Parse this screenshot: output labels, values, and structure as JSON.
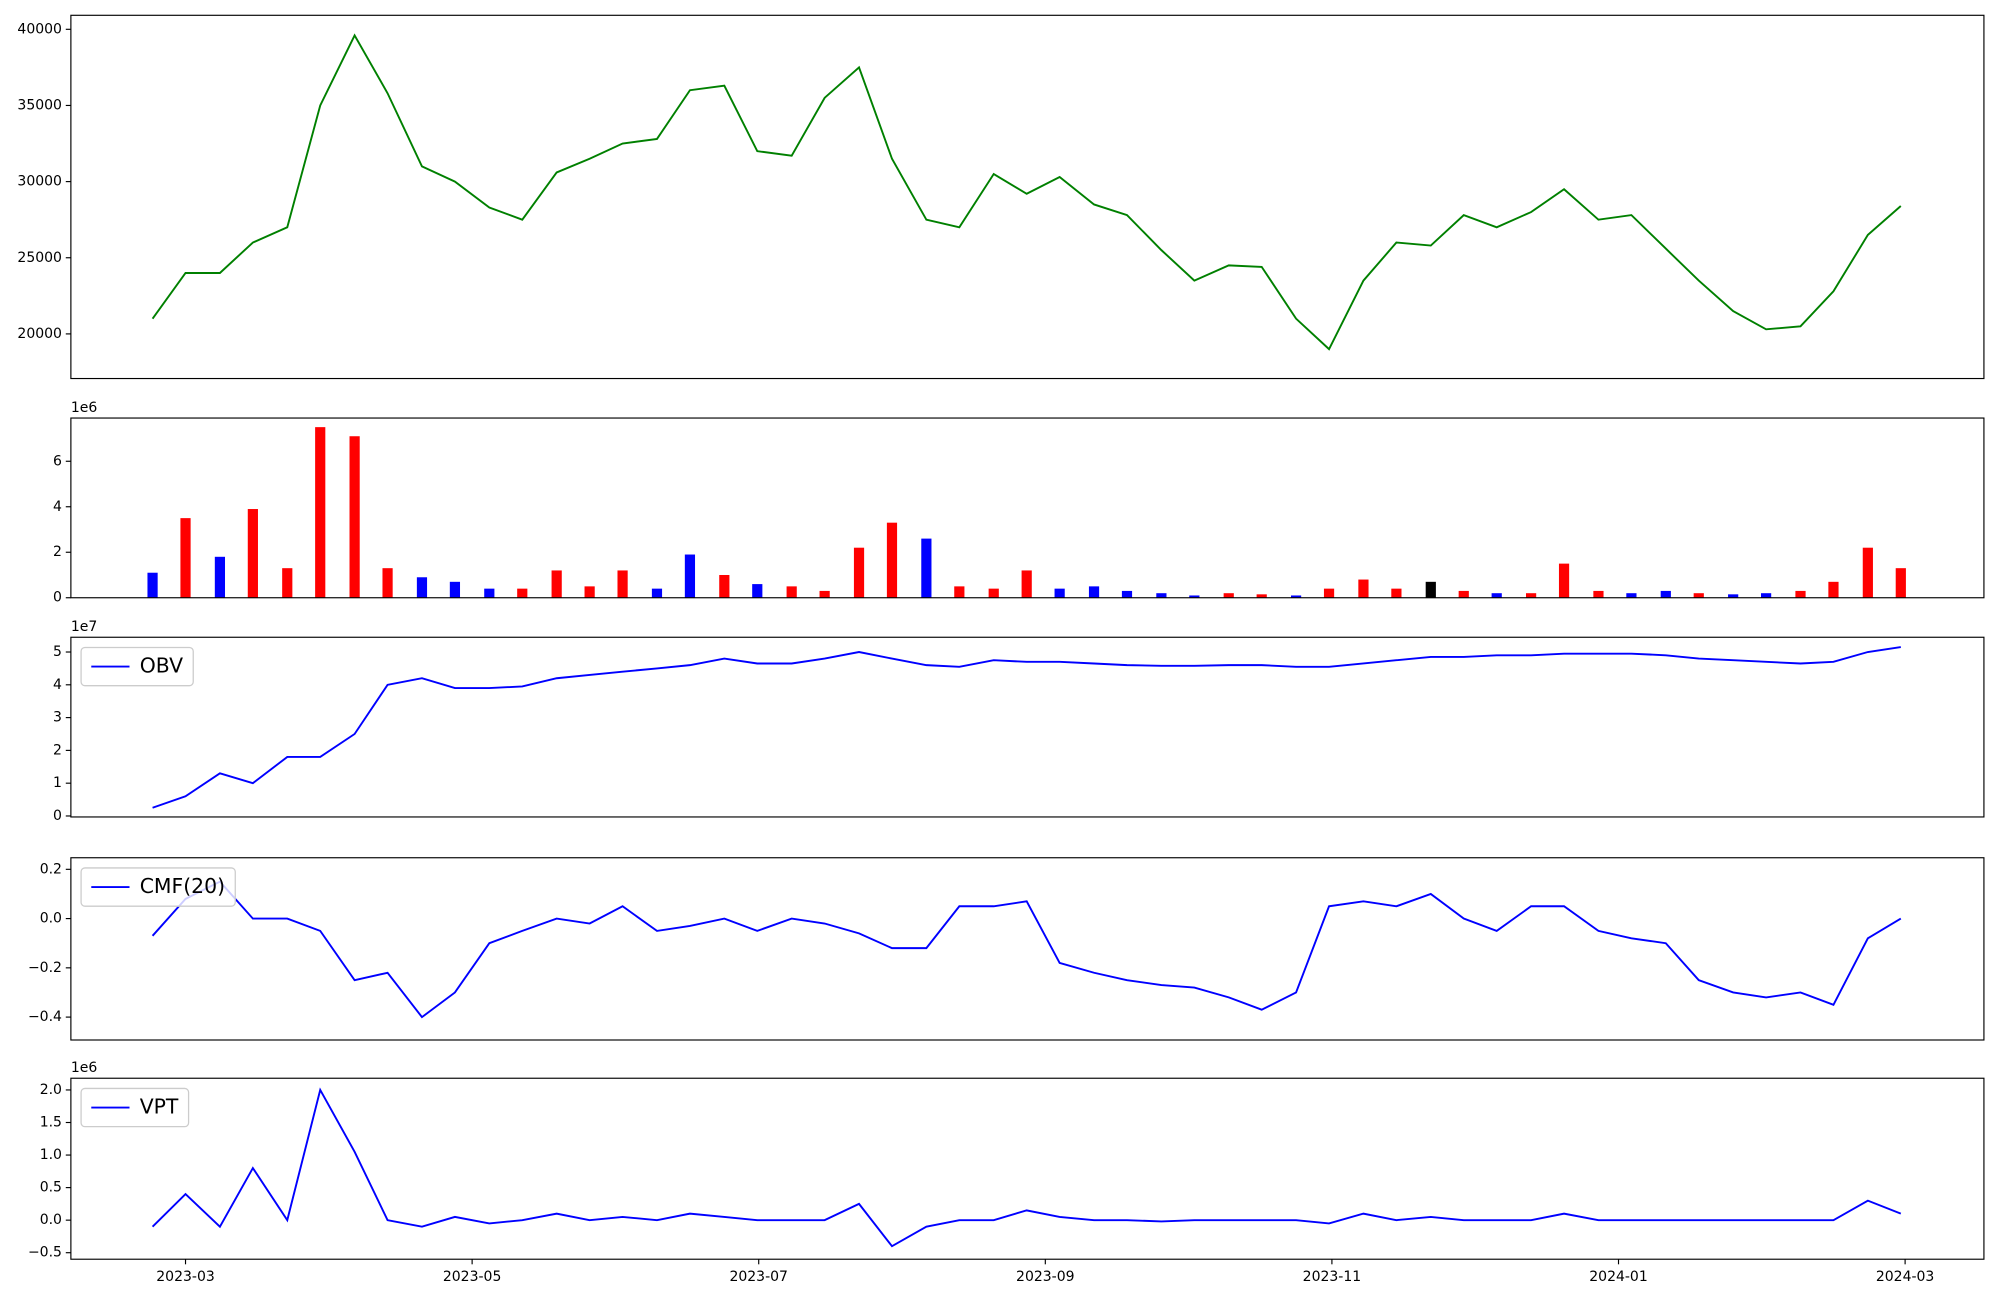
{
  "chart_data": [
    {
      "type": "line",
      "x": [
        1.77,
        2.0,
        2.24,
        2.47,
        2.71,
        2.94,
        3.18,
        3.41,
        3.65,
        3.88,
        4.12,
        4.35,
        4.59,
        4.82,
        5.05,
        5.29,
        5.52,
        5.76,
        5.99,
        6.23,
        6.46,
        6.7,
        6.93,
        7.17,
        7.4,
        7.64,
        7.87,
        8.1,
        8.34,
        8.57,
        8.81,
        9.04,
        9.28,
        9.51,
        9.75,
        9.98,
        10.22,
        10.45,
        10.69,
        10.92,
        11.15,
        11.39,
        11.62,
        11.86,
        12.09,
        12.33,
        12.56,
        12.8,
        13.03,
        13.27,
        13.5,
        13.74,
        13.97
      ],
      "xlim": [
        1.2,
        14.55
      ],
      "series": [
        {
          "color": "green",
          "values": [
            21000,
            24000,
            24000,
            26000,
            27000,
            35000,
            39600,
            35800,
            31000,
            30000,
            28300,
            27500,
            30600,
            31500,
            32500,
            32800,
            36000,
            36300,
            32000,
            31700,
            35500,
            37500,
            31500,
            27500,
            27000,
            30500,
            29200,
            30300,
            28500,
            27800,
            25500,
            23500,
            24500,
            24400,
            21000,
            19000,
            23500,
            26000,
            25800,
            27800,
            27000,
            28000,
            29500,
            27500,
            27800,
            25600,
            23500,
            21500,
            20300,
            20500,
            22800,
            26500,
            28400
          ]
        }
      ],
      "ylim": [
        17070,
        40920
      ],
      "yticks": [
        20000,
        25000,
        30000,
        35000,
        40000
      ]
    },
    {
      "type": "bar",
      "x": [
        1.77,
        2.0,
        2.24,
        2.47,
        2.71,
        2.94,
        3.18,
        3.41,
        3.65,
        3.88,
        4.12,
        4.35,
        4.59,
        4.82,
        5.05,
        5.29,
        5.52,
        5.76,
        5.99,
        6.23,
        6.46,
        6.7,
        6.93,
        7.17,
        7.4,
        7.64,
        7.87,
        8.1,
        8.34,
        8.57,
        8.81,
        9.04,
        9.28,
        9.51,
        9.75,
        9.98,
        10.22,
        10.45,
        10.69,
        10.92,
        11.15,
        11.39,
        11.62,
        11.86,
        12.09,
        12.33,
        12.56,
        12.8,
        13.03,
        13.27,
        13.5,
        13.74,
        13.97
      ],
      "xlim": [
        1.2,
        14.55
      ],
      "values": [
        1.1,
        3.5,
        1.8,
        3.9,
        1.3,
        7.5,
        7.1,
        1.3,
        0.9,
        0.7,
        0.4,
        0.4,
        1.2,
        0.5,
        1.2,
        0.4,
        1.9,
        1.0,
        0.6,
        0.5,
        0.3,
        2.2,
        3.3,
        2.6,
        0.5,
        0.4,
        1.2,
        0.4,
        0.5,
        0.3,
        0.2,
        0.1,
        0.2,
        0.15,
        0.1,
        0.4,
        0.8,
        0.4,
        0.7,
        0.3,
        0.2,
        0.2,
        1.5,
        0.3,
        0.2,
        0.3,
        0.2,
        0.15,
        0.2,
        0.3,
        0.7,
        2.2,
        1.3
      ],
      "colors": [
        "blue",
        "red",
        "blue",
        "red",
        "red",
        "red",
        "red",
        "red",
        "blue",
        "blue",
        "blue",
        "red",
        "red",
        "red",
        "red",
        "blue",
        "blue",
        "red",
        "blue",
        "red",
        "red",
        "red",
        "red",
        "blue",
        "red",
        "red",
        "red",
        "blue",
        "blue",
        "blue",
        "blue",
        "blue",
        "red",
        "red",
        "blue",
        "red",
        "red",
        "red",
        "black",
        "red",
        "blue",
        "red",
        "red",
        "red",
        "blue",
        "blue",
        "red",
        "blue",
        "blue",
        "red",
        "red",
        "red",
        "red"
      ],
      "ylim": [
        0,
        7.9
      ],
      "yticks": [
        0,
        2,
        4,
        6
      ],
      "offset_label": "1e6"
    },
    {
      "type": "line",
      "x": [
        1.77,
        2.0,
        2.24,
        2.47,
        2.71,
        2.94,
        3.18,
        3.41,
        3.65,
        3.88,
        4.12,
        4.35,
        4.59,
        4.82,
        5.05,
        5.29,
        5.52,
        5.76,
        5.99,
        6.23,
        6.46,
        6.7,
        6.93,
        7.17,
        7.4,
        7.64,
        7.87,
        8.1,
        8.34,
        8.57,
        8.81,
        9.04,
        9.28,
        9.51,
        9.75,
        9.98,
        10.22,
        10.45,
        10.69,
        10.92,
        11.15,
        11.39,
        11.62,
        11.86,
        12.09,
        12.33,
        12.56,
        12.8,
        13.03,
        13.27,
        13.5,
        13.74,
        13.97
      ],
      "xlim": [
        1.2,
        14.55
      ],
      "series": [
        {
          "name": "OBV",
          "color": "blue",
          "values": [
            0.25,
            0.6,
            1.3,
            1.0,
            1.8,
            1.8,
            2.5,
            4.0,
            4.2,
            3.9,
            3.9,
            3.95,
            4.2,
            4.3,
            4.4,
            4.5,
            4.6,
            4.8,
            4.65,
            4.65,
            4.8,
            5.0,
            4.8,
            4.6,
            4.55,
            4.75,
            4.7,
            4.7,
            4.65,
            4.6,
            4.58,
            4.58,
            4.6,
            4.6,
            4.55,
            4.55,
            4.65,
            4.75,
            4.85,
            4.85,
            4.9,
            4.9,
            4.95,
            4.95,
            4.95,
            4.9,
            4.8,
            4.75,
            4.7,
            4.65,
            4.7,
            5.0,
            5.15
          ]
        }
      ],
      "ylim": [
        -0.03,
        5.45
      ],
      "yticks": [
        0,
        1,
        2,
        3,
        4,
        5
      ],
      "offset_label": "1e7",
      "legend": "upper left"
    },
    {
      "type": "line",
      "x": [
        1.77,
        2.0,
        2.24,
        2.47,
        2.71,
        2.94,
        3.18,
        3.41,
        3.65,
        3.88,
        4.12,
        4.35,
        4.59,
        4.82,
        5.05,
        5.29,
        5.52,
        5.76,
        5.99,
        6.23,
        6.46,
        6.7,
        6.93,
        7.17,
        7.4,
        7.64,
        7.87,
        8.1,
        8.34,
        8.57,
        8.81,
        9.04,
        9.28,
        9.51,
        9.75,
        9.98,
        10.22,
        10.45,
        10.69,
        10.92,
        11.15,
        11.39,
        11.62,
        11.86,
        12.09,
        12.33,
        12.56,
        12.8,
        13.03,
        13.27,
        13.5,
        13.74,
        13.97
      ],
      "xlim": [
        1.2,
        14.55
      ],
      "series": [
        {
          "name": "CMF(20)",
          "color": "blue",
          "values": [
            -0.07,
            0.08,
            0.15,
            0.0,
            0.0,
            -0.05,
            -0.25,
            -0.22,
            -0.4,
            -0.3,
            -0.1,
            -0.05,
            0.0,
            -0.02,
            0.05,
            -0.05,
            -0.03,
            0.0,
            -0.05,
            0.0,
            -0.02,
            -0.06,
            -0.12,
            -0.12,
            0.05,
            0.05,
            0.07,
            -0.18,
            -0.22,
            -0.25,
            -0.27,
            -0.28,
            -0.32,
            -0.37,
            -0.3,
            0.05,
            0.07,
            0.05,
            0.1,
            0.0,
            -0.05,
            0.05,
            0.05,
            -0.05,
            -0.08,
            -0.1,
            -0.25,
            -0.3,
            -0.32,
            -0.3,
            -0.35,
            -0.08,
            0.0
          ]
        }
      ],
      "ylim": [
        -0.493,
        0.247
      ],
      "yticks": [
        {
          "value": -0.4,
          "label": "−0.4"
        },
        {
          "value": -0.2,
          "label": "−0.2"
        },
        {
          "value": 0,
          "label": "0.0"
        },
        0.2
      ],
      "legend": "upper left"
    },
    {
      "type": "line",
      "x": [
        1.77,
        2.0,
        2.24,
        2.47,
        2.71,
        2.94,
        3.18,
        3.41,
        3.65,
        3.88,
        4.12,
        4.35,
        4.59,
        4.82,
        5.05,
        5.29,
        5.52,
        5.76,
        5.99,
        6.23,
        6.46,
        6.7,
        6.93,
        7.17,
        7.4,
        7.64,
        7.87,
        8.1,
        8.34,
        8.57,
        8.81,
        9.04,
        9.28,
        9.51,
        9.75,
        9.98,
        10.22,
        10.45,
        10.69,
        10.92,
        11.15,
        11.39,
        11.62,
        11.86,
        12.09,
        12.33,
        12.56,
        12.8,
        13.03,
        13.27,
        13.5,
        13.74,
        13.97
      ],
      "xlim": [
        1.2,
        14.55
      ],
      "xticks": [
        {
          "value": 2,
          "label": "2023-03"
        },
        {
          "value": 4,
          "label": "2023-05"
        },
        {
          "value": 6,
          "label": "2023-07"
        },
        {
          "value": 8,
          "label": "2023-09"
        },
        {
          "value": 10,
          "label": "2023-11"
        },
        {
          "value": 12,
          "label": "2024-01"
        },
        {
          "value": 14,
          "label": "2024-03"
        }
      ],
      "series": [
        {
          "name": "VPT",
          "color": "blue",
          "values": [
            -0.1,
            0.4,
            -0.1,
            0.8,
            0.0,
            2.0,
            1.05,
            0.0,
            -0.1,
            0.05,
            -0.05,
            0.0,
            0.1,
            0.0,
            0.05,
            0.0,
            0.1,
            0.05,
            0.0,
            0.0,
            0.0,
            0.25,
            -0.4,
            -0.1,
            0.0,
            0.0,
            0.15,
            0.05,
            0.0,
            0.0,
            -0.02,
            0.0,
            0.0,
            0.0,
            0.0,
            -0.05,
            0.1,
            0.0,
            0.05,
            0.0,
            0.0,
            0.0,
            0.1,
            0.0,
            0.0,
            0.0,
            0.0,
            0.0,
            0.0,
            0.0,
            0.0,
            0.3,
            0.1
          ]
        }
      ],
      "ylim": [
        -0.6,
        2.18
      ],
      "yticks": [
        {
          "value": -0.5,
          "label": "−0.5"
        },
        {
          "value": 0,
          "label": "0.0"
        },
        0.5,
        {
          "value": 1,
          "label": "1.0"
        },
        1.5,
        {
          "value": 2,
          "label": "2.0"
        }
      ],
      "offset_label": "1e6",
      "legend": "upper left"
    }
  ]
}
